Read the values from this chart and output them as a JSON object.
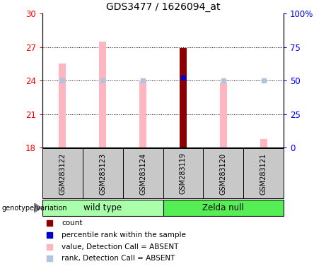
{
  "title": "GDS3477 / 1626094_at",
  "samples": [
    "GSM283122",
    "GSM283123",
    "GSM283124",
    "GSM283119",
    "GSM283120",
    "GSM283121"
  ],
  "ylim_left": [
    18,
    30
  ],
  "ylim_right": [
    0,
    100
  ],
  "yticks_left": [
    18,
    21,
    24,
    27,
    30
  ],
  "yticks_right": [
    0,
    25,
    50,
    75,
    100
  ],
  "ytick_right_labels": [
    "0",
    "25",
    "50",
    "75",
    "100%"
  ],
  "bar_values": [
    25.5,
    27.5,
    24.0,
    26.9,
    23.8,
    18.8
  ],
  "bar_colors": [
    "#ffb6c1",
    "#ffb6c1",
    "#ffb6c1",
    "#8b0000",
    "#ffb6c1",
    "#ffb6c1"
  ],
  "rank_values_pct": [
    50,
    50,
    50,
    52,
    50,
    50
  ],
  "rank_colors": [
    "#b0c4de",
    "#b0c4de",
    "#b0c4de",
    "#0000cd",
    "#b0c4de",
    "#b0c4de"
  ],
  "grid_yticks": [
    21,
    24,
    27
  ],
  "bar_width": 0.18,
  "background_color": "#ffffff",
  "label_area_color": "#c8c8c8",
  "wt_color": "#aaffaa",
  "zn_color": "#55ee55",
  "legend_items": [
    {
      "label": "count",
      "color": "#8b0000"
    },
    {
      "label": "percentile rank within the sample",
      "color": "#0000cd"
    },
    {
      "label": "value, Detection Call = ABSENT",
      "color": "#ffb6c1"
    },
    {
      "label": "rank, Detection Call = ABSENT",
      "color": "#b0c4de"
    }
  ]
}
